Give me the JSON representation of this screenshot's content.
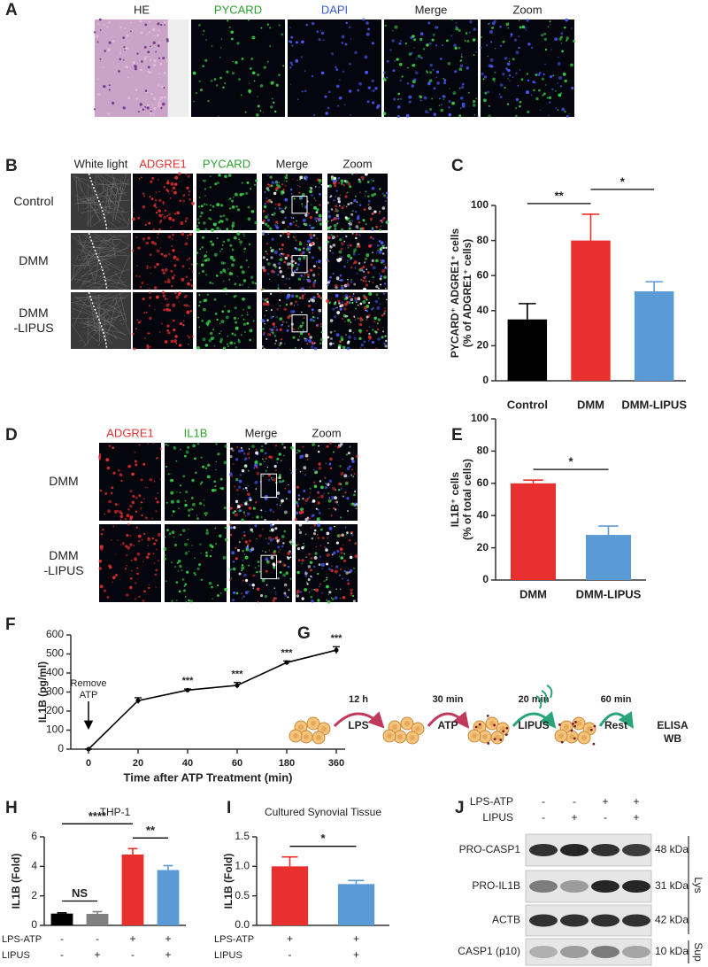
{
  "panel_labels": [
    "A",
    "B",
    "C",
    "D",
    "E",
    "F",
    "G",
    "H",
    "I",
    "J"
  ],
  "panel_a": {
    "columns": [
      {
        "label": "HE",
        "color": "#222222"
      },
      {
        "label": "PYCARD",
        "color": "#2ca02c"
      },
      {
        "label": "DAPI",
        "color": "#3a5fcd"
      },
      {
        "label": "Merge",
        "color": "#222222"
      },
      {
        "label": "Zoom",
        "color": "#222222"
      }
    ]
  },
  "panel_b": {
    "columns": [
      {
        "label": "White light",
        "color": "#222222"
      },
      {
        "label": "ADGRE1",
        "color": "#e0302e"
      },
      {
        "label": "PYCARD",
        "color": "#2ca02c"
      },
      {
        "label": "Merge",
        "color": "#222222"
      },
      {
        "label": "Zoom",
        "color": "#222222"
      }
    ],
    "rows": [
      [
        "Control"
      ],
      [
        "DMM"
      ],
      [
        "DMM",
        "-LIPUS"
      ]
    ]
  },
  "panel_d": {
    "columns": [
      {
        "label": "ADGRE1",
        "color": "#e0302e"
      },
      {
        "label": "IL1B",
        "color": "#2ca02c"
      },
      {
        "label": "Merge",
        "color": "#222222"
      },
      {
        "label": "Zoom",
        "color": "#222222"
      }
    ],
    "rows": [
      [
        "DMM"
      ],
      [
        "DMM",
        "-LIPUS"
      ]
    ]
  },
  "chart_data": [
    {
      "type": "bar",
      "ylabel": [
        "PYCARD⁺ ADGRE1⁺ cells",
        "(% of ADGRE1⁺ cells)"
      ],
      "categories": [
        "Control",
        "DMM",
        "DMM-LIPUS"
      ],
      "values": [
        35,
        80,
        51
      ],
      "errors": [
        9,
        15,
        5.5
      ],
      "colors": [
        "#000000",
        "#e8312f",
        "#5b9bd5"
      ],
      "ylim": [
        0,
        100
      ],
      "yticks": [
        0,
        20,
        40,
        60,
        80,
        100
      ],
      "significance": [
        {
          "between": [
            0,
            1
          ],
          "label": "**"
        },
        {
          "between": [
            1,
            2
          ],
          "label": "*"
        }
      ]
    },
    {
      "type": "bar",
      "ylabel": [
        "IL1B⁺ cells",
        "(% of total cells)"
      ],
      "categories": [
        "DMM",
        "DMM-LIPUS"
      ],
      "values": [
        60,
        28
      ],
      "errors": [
        2,
        5.5
      ],
      "colors": [
        "#e8312f",
        "#5b9bd5"
      ],
      "ylim": [
        0,
        100
      ],
      "yticks": [
        0,
        20,
        40,
        60,
        80,
        100
      ],
      "significance": [
        {
          "between": [
            0,
            1
          ],
          "label": "*"
        }
      ]
    },
    {
      "type": "line",
      "ylabel": [
        "IL1B (pg/ml)"
      ],
      "xlabel": "Time after ATP Treatment (min)",
      "categories": [
        "0",
        "20",
        "40",
        "60",
        "180",
        "360"
      ],
      "values": [
        0,
        255,
        310,
        335,
        455,
        520
      ],
      "errors": [
        0,
        15,
        6,
        15,
        8,
        18
      ],
      "significance": [
        null,
        null,
        "***",
        "***",
        "***",
        "***"
      ],
      "color": "#000000",
      "ylim": [
        0,
        600
      ],
      "yticks": [
        0,
        100,
        200,
        300,
        400,
        500,
        600
      ],
      "annotation": {
        "lines": [
          "Remove",
          "ATP"
        ],
        "category": 0
      }
    },
    {
      "type": "bar",
      "title": "THP-1",
      "ylabel": [
        "IL1B (Fold)"
      ],
      "categories": [
        null,
        null,
        null,
        null
      ],
      "conditions": [
        {
          "name": "LPS-ATP",
          "levels": [
            "-",
            "-",
            "+",
            "+"
          ]
        },
        {
          "name": "LIPUS",
          "levels": [
            "-",
            "+",
            "-",
            "+"
          ]
        }
      ],
      "values": [
        0.8,
        0.78,
        4.8,
        3.75
      ],
      "errors": [
        0.05,
        0.15,
        0.4,
        0.3
      ],
      "colors": [
        "#000000",
        "#808080",
        "#e8312f",
        "#5b9bd5"
      ],
      "ylim": [
        0,
        6
      ],
      "yticks": [
        0,
        2,
        4,
        6
      ],
      "significance": [
        {
          "between": [
            0,
            1
          ],
          "label": "NS"
        },
        {
          "between": [
            2,
            3
          ],
          "label": "**"
        },
        {
          "between": [
            0,
            2
          ],
          "label": "****"
        }
      ]
    },
    {
      "type": "bar",
      "title": "Cultured Synovial Tissue",
      "ylabel": [
        "IL1B (Fold)"
      ],
      "categories": [
        null,
        null
      ],
      "conditions": [
        {
          "name": "LPS-ATP",
          "levels": [
            "+",
            "+"
          ]
        },
        {
          "name": "LIPUS",
          "levels": [
            "-",
            "+"
          ]
        }
      ],
      "values": [
        1.0,
        0.7
      ],
      "errors": [
        0.16,
        0.06
      ],
      "colors": [
        "#e8312f",
        "#5b9bd5"
      ],
      "ylim": [
        0,
        1.5
      ],
      "yticks": [
        {
          "value": 0,
          "label": "0.0"
        },
        0.5,
        {
          "value": 1,
          "label": "1.0"
        },
        1.5
      ],
      "significance": [
        {
          "between": [
            0,
            1
          ],
          "label": "*"
        }
      ]
    }
  ],
  "panel_g": {
    "steps": [
      {
        "time": "12 h",
        "action": "LPS"
      },
      {
        "time": "30 min",
        "action": "ATP"
      },
      {
        "time": "20 min",
        "action": "LIPUS"
      },
      {
        "time": "60 min",
        "action": "Rest"
      }
    ],
    "readouts": [
      "ELISA",
      "WB"
    ]
  },
  "panel_j": {
    "conditions": [
      {
        "name": "LPS-ATP",
        "levels": [
          "-",
          "-",
          "+",
          "+"
        ]
      },
      {
        "name": "LIPUS",
        "levels": [
          "-",
          "+",
          "-",
          "+"
        ]
      }
    ],
    "groups": [
      {
        "name": "Lys",
        "bands": [
          {
            "name": "PRO-CASP1",
            "size": "48 kDa"
          },
          {
            "name": "PRO-IL1B",
            "size": "31 kDa"
          },
          {
            "name": "ACTB",
            "size": "42 kDa"
          }
        ]
      },
      {
        "name": "Sup",
        "bands": [
          {
            "name": "CASP1 (p10)",
            "size": "10 kDa"
          }
        ]
      }
    ]
  }
}
